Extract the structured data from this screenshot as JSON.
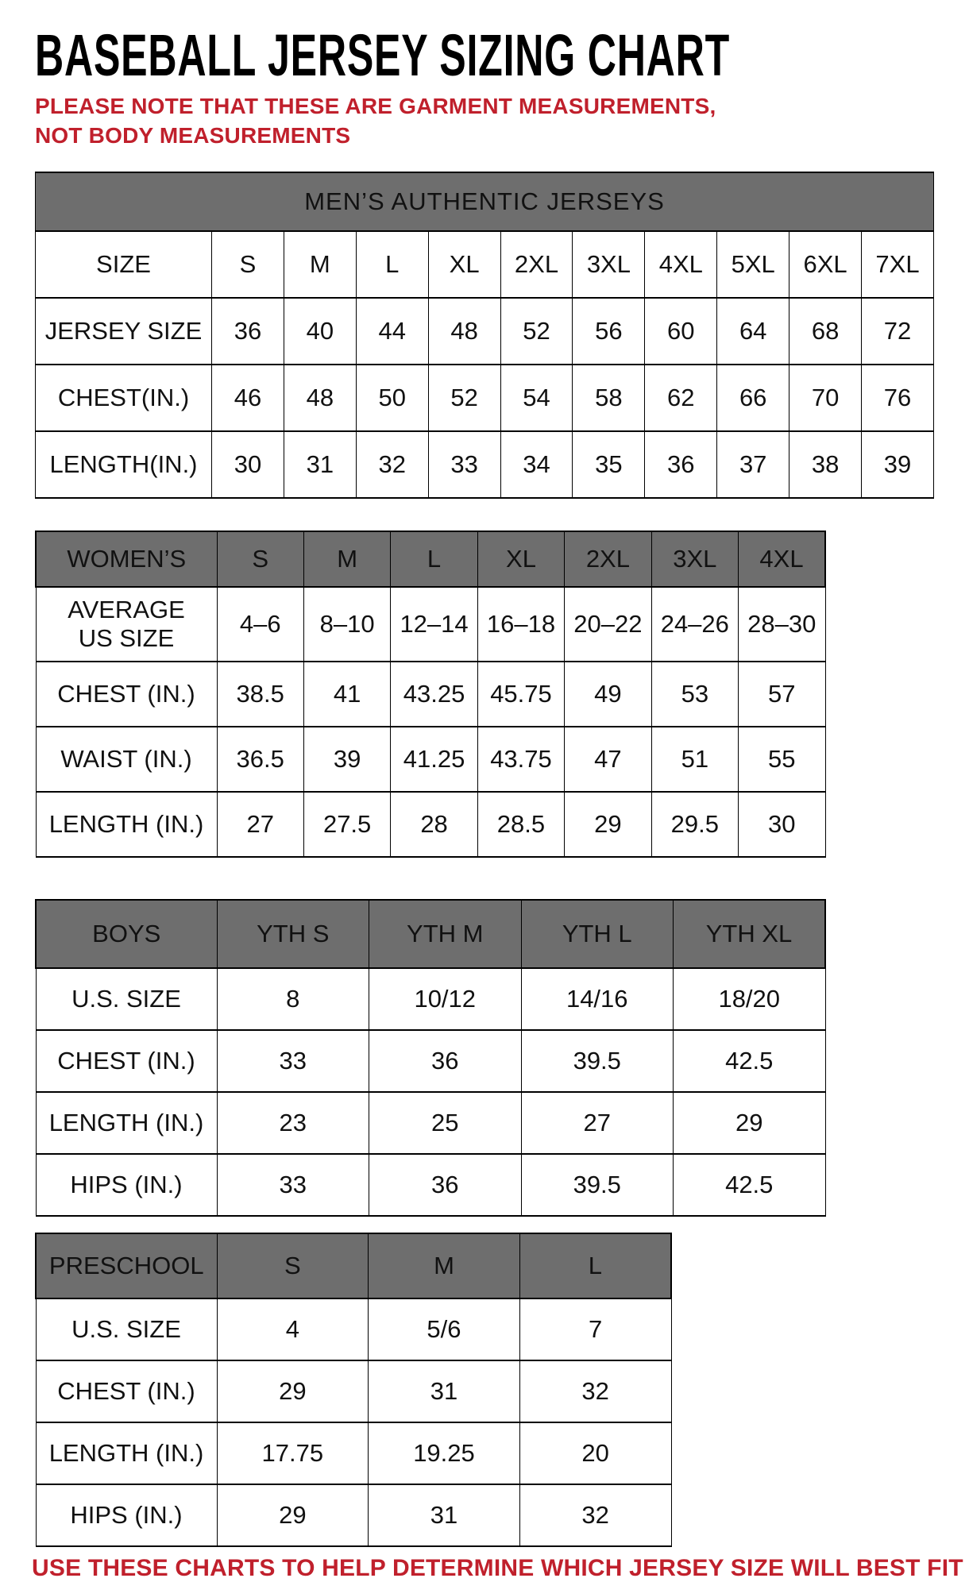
{
  "page": {
    "title": "BASEBALL JERSEY SIZING CHART",
    "note": "PLEASE NOTE THAT THESE ARE GARMENT MEASUREMENTS, NOT BODY MEASUREMENTS",
    "footer": "USE THESE CHARTS TO HELP DETERMINE WHICH JERSEY SIZE WILL BEST FIT YOU."
  },
  "colors": {
    "accent_red": "#c0202c",
    "header_gray": "#6e6e6e",
    "text_black": "#111111"
  },
  "tables": {
    "mens": {
      "title": "MEN’S AUTHENTIC JERSEYS",
      "rows": [
        {
          "label": "SIZE",
          "values": [
            "S",
            "M",
            "L",
            "XL",
            "2XL",
            "3XL",
            "4XL",
            "5XL",
            "6XL",
            "7XL"
          ]
        },
        {
          "label": "JERSEY SIZE",
          "values": [
            "36",
            "40",
            "44",
            "48",
            "52",
            "56",
            "60",
            "64",
            "68",
            "72"
          ]
        },
        {
          "label": "CHEST(IN.)",
          "values": [
            "46",
            "48",
            "50",
            "52",
            "54",
            "58",
            "62",
            "66",
            "70",
            "76"
          ]
        },
        {
          "label": "LENGTH(IN.)",
          "values": [
            "30",
            "31",
            "32",
            "33",
            "34",
            "35",
            "36",
            "37",
            "38",
            "39"
          ]
        }
      ]
    },
    "womens": {
      "header": {
        "label": "WOMEN’S",
        "sizes": [
          "S",
          "M",
          "L",
          "XL",
          "2XL",
          "3XL",
          "4XL"
        ]
      },
      "rows": [
        {
          "label": "AVERAGE\nUS SIZE",
          "values": [
            "4–6",
            "8–10",
            "12–14",
            "16–18",
            "20–22",
            "24–26",
            "28–30"
          ]
        },
        {
          "label": "CHEST (IN.)",
          "values": [
            "38.5",
            "41",
            "43.25",
            "45.75",
            "49",
            "53",
            "57"
          ]
        },
        {
          "label": "WAIST (IN.)",
          "values": [
            "36.5",
            "39",
            "41.25",
            "43.75",
            "47",
            "51",
            "55"
          ]
        },
        {
          "label": "LENGTH (IN.)",
          "values": [
            "27",
            "27.5",
            "28",
            "28.5",
            "29",
            "29.5",
            "30"
          ]
        }
      ]
    },
    "boys": {
      "header": {
        "label": "BOYS",
        "sizes": [
          "YTH S",
          "YTH M",
          "YTH L",
          "YTH XL"
        ]
      },
      "rows": [
        {
          "label": "U.S. SIZE",
          "values": [
            "8",
            "10/12",
            "14/16",
            "18/20"
          ]
        },
        {
          "label": "CHEST (IN.)",
          "values": [
            "33",
            "36",
            "39.5",
            "42.5"
          ]
        },
        {
          "label": "LENGTH (IN.)",
          "values": [
            "23",
            "25",
            "27",
            "29"
          ]
        },
        {
          "label": "HIPS (IN.)",
          "values": [
            "33",
            "36",
            "39.5",
            "42.5"
          ]
        }
      ]
    },
    "preschool": {
      "header": {
        "label": "PRESCHOOL",
        "sizes": [
          "S",
          "M",
          "L"
        ]
      },
      "rows": [
        {
          "label": "U.S. SIZE",
          "values": [
            "4",
            "5/6",
            "7"
          ]
        },
        {
          "label": "CHEST (IN.)",
          "values": [
            "29",
            "31",
            "32"
          ]
        },
        {
          "label": "LENGTH (IN.)",
          "values": [
            "17.75",
            "19.25",
            "20"
          ]
        },
        {
          "label": "HIPS (IN.)",
          "values": [
            "29",
            "31",
            "32"
          ]
        }
      ]
    }
  }
}
